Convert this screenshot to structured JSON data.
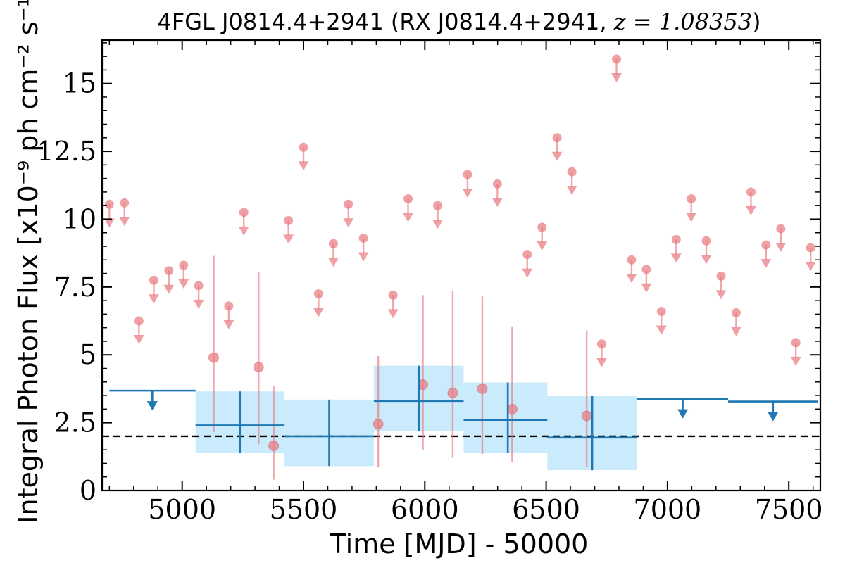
{
  "chart_data": {
    "type": "scatter",
    "title": "4FGL J0814.4+2941 (RX J0814.4+2941, z = 1.08353)",
    "title_parts": {
      "name": "4FGL J0814.4+2941 (RX J0814.4+2941, ",
      "z_label": "z = 1.08353",
      "close": ")"
    },
    "xlabel": "Time [MJD] - 50000",
    "ylabel": "Integral Photon Flux [x10⁻⁹ ph cm⁻² s⁻¹]",
    "xlim": [
      4670,
      7630
    ],
    "ylim": [
      0,
      16.6
    ],
    "x_ticks": [
      5000,
      5500,
      6000,
      6500,
      7000,
      7500
    ],
    "x_tick_labels": [
      "5000",
      "5500",
      "6000",
      "6500",
      "7000",
      "7500"
    ],
    "y_ticks": [
      0,
      2.5,
      5,
      7.5,
      10,
      12.5,
      15
    ],
    "y_tick_labels": [
      "0",
      "2.5",
      "5",
      "7.5",
      "10",
      "12.5",
      "15"
    ],
    "reference_line": {
      "y": 2.0,
      "style": "dashed",
      "color": "#000000"
    },
    "colors": {
      "short_bin": "#e8787e",
      "long_bin": "#1f77b4",
      "long_bin_band": "#c9ebfb",
      "reference": "#000000"
    },
    "short_bin_upper_limits": [
      {
        "x": 4700,
        "y": 10.55
      },
      {
        "x": 4762,
        "y": 10.6
      },
      {
        "x": 4822,
        "y": 6.25
      },
      {
        "x": 4883,
        "y": 7.75
      },
      {
        "x": 4945,
        "y": 8.1
      },
      {
        "x": 5006,
        "y": 8.3
      },
      {
        "x": 5068,
        "y": 7.55
      },
      {
        "x": 5192,
        "y": 6.8
      },
      {
        "x": 5254,
        "y": 10.25
      },
      {
        "x": 5438,
        "y": 9.95
      },
      {
        "x": 5500,
        "y": 12.65
      },
      {
        "x": 5562,
        "y": 7.25
      },
      {
        "x": 5623,
        "y": 9.1
      },
      {
        "x": 5685,
        "y": 10.55
      },
      {
        "x": 5747,
        "y": 9.3
      },
      {
        "x": 5869,
        "y": 7.2
      },
      {
        "x": 5931,
        "y": 10.75
      },
      {
        "x": 6053,
        "y": 10.5
      },
      {
        "x": 6176,
        "y": 11.65
      },
      {
        "x": 6299,
        "y": 11.3
      },
      {
        "x": 6422,
        "y": 8.7
      },
      {
        "x": 6483,
        "y": 9.7
      },
      {
        "x": 6545,
        "y": 13.0
      },
      {
        "x": 6606,
        "y": 11.75
      },
      {
        "x": 6729,
        "y": 5.4
      },
      {
        "x": 6790,
        "y": 15.9
      },
      {
        "x": 6852,
        "y": 8.5
      },
      {
        "x": 6913,
        "y": 8.15
      },
      {
        "x": 6975,
        "y": 6.6
      },
      {
        "x": 7036,
        "y": 9.25
      },
      {
        "x": 7098,
        "y": 10.75
      },
      {
        "x": 7160,
        "y": 9.2
      },
      {
        "x": 7221,
        "y": 7.9
      },
      {
        "x": 7283,
        "y": 6.55
      },
      {
        "x": 7344,
        "y": 11.0
      },
      {
        "x": 7406,
        "y": 9.05
      },
      {
        "x": 7467,
        "y": 9.65
      },
      {
        "x": 7529,
        "y": 5.45
      },
      {
        "x": 7590,
        "y": 8.95
      }
    ],
    "short_bin_detections": [
      {
        "x": 5130,
        "y": 4.9,
        "ylow": 2.15,
        "yhigh": 8.65
      },
      {
        "x": 5315,
        "y": 4.55,
        "ylow": 1.7,
        "yhigh": 8.05
      },
      {
        "x": 5377,
        "y": 1.65,
        "ylow": 0.4,
        "yhigh": 3.85
      },
      {
        "x": 5808,
        "y": 2.45,
        "ylow": 0.85,
        "yhigh": 4.95
      },
      {
        "x": 5992,
        "y": 3.9,
        "ylow": 1.5,
        "yhigh": 7.2
      },
      {
        "x": 6115,
        "y": 3.6,
        "ylow": 1.2,
        "yhigh": 7.35
      },
      {
        "x": 6237,
        "y": 3.75,
        "ylow": 1.35,
        "yhigh": 7.15
      },
      {
        "x": 6360,
        "y": 3.0,
        "ylow": 1.05,
        "yhigh": 6.05
      },
      {
        "x": 6667,
        "y": 2.75,
        "ylow": 0.85,
        "yhigh": 5.9
      }
    ],
    "long_bin_upper_limits": [
      {
        "x0": 4700,
        "x1": 5055,
        "y": 3.68,
        "arrow_x": 4877
      },
      {
        "x0": 6875,
        "x1": 7250,
        "y": 3.38,
        "arrow_x": 7063
      },
      {
        "x0": 7250,
        "x1": 7620,
        "y": 3.28,
        "arrow_x": 7435
      }
    ],
    "long_bin_detections": [
      {
        "x0": 5055,
        "x1": 5422,
        "x": 5238,
        "y": 2.4,
        "ylow": 1.4,
        "yhigh": 3.65
      },
      {
        "x0": 5422,
        "x1": 5790,
        "x": 5606,
        "y": 2.0,
        "ylow": 0.9,
        "yhigh": 3.35
      },
      {
        "x0": 5790,
        "x1": 6160,
        "x": 5975,
        "y": 3.3,
        "ylow": 2.2,
        "yhigh": 4.6
      },
      {
        "x0": 6160,
        "x1": 6505,
        "x": 6342,
        "y": 2.6,
        "ylow": 1.4,
        "yhigh": 3.98
      },
      {
        "x0": 6505,
        "x1": 6875,
        "x": 6690,
        "y": 1.95,
        "ylow": 0.75,
        "yhigh": 3.5
      }
    ]
  }
}
